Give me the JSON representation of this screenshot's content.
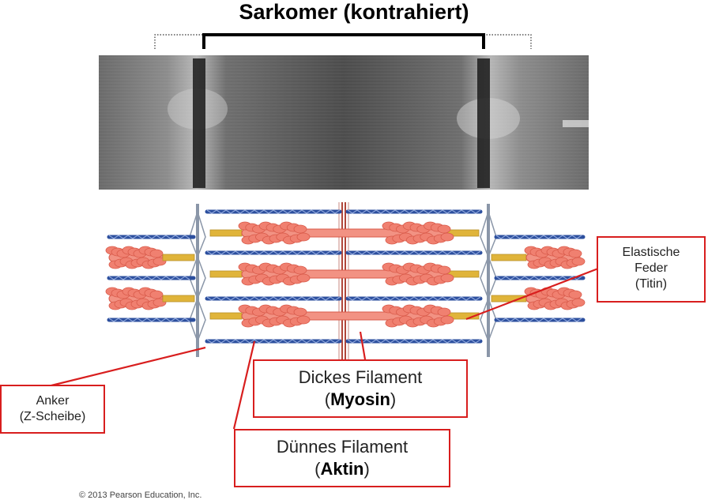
{
  "title": "Sarkomer (kontrahiert)",
  "labels": {
    "titin": {
      "line1": "Elastische",
      "line2": "Feder",
      "line3": "(Titin)"
    },
    "anchor": {
      "line1": "Anker",
      "line2": "(Z-Scheibe)"
    },
    "thick": {
      "line1": "Dickes Filament",
      "open": "(",
      "bold": "Myosin",
      "close": ")"
    },
    "thin": {
      "line1": "Dünnes Filament",
      "open": "(",
      "bold": "Aktin",
      "close": ")"
    }
  },
  "copyright": "© 2013 Pearson Education, Inc.",
  "colors": {
    "label_border": "#d81e1e",
    "actin": "#2c4f9e",
    "myosin": "#f08070",
    "titin": "#e0b43a",
    "zline": "#8a96a8",
    "mline": "#b0463a"
  }
}
